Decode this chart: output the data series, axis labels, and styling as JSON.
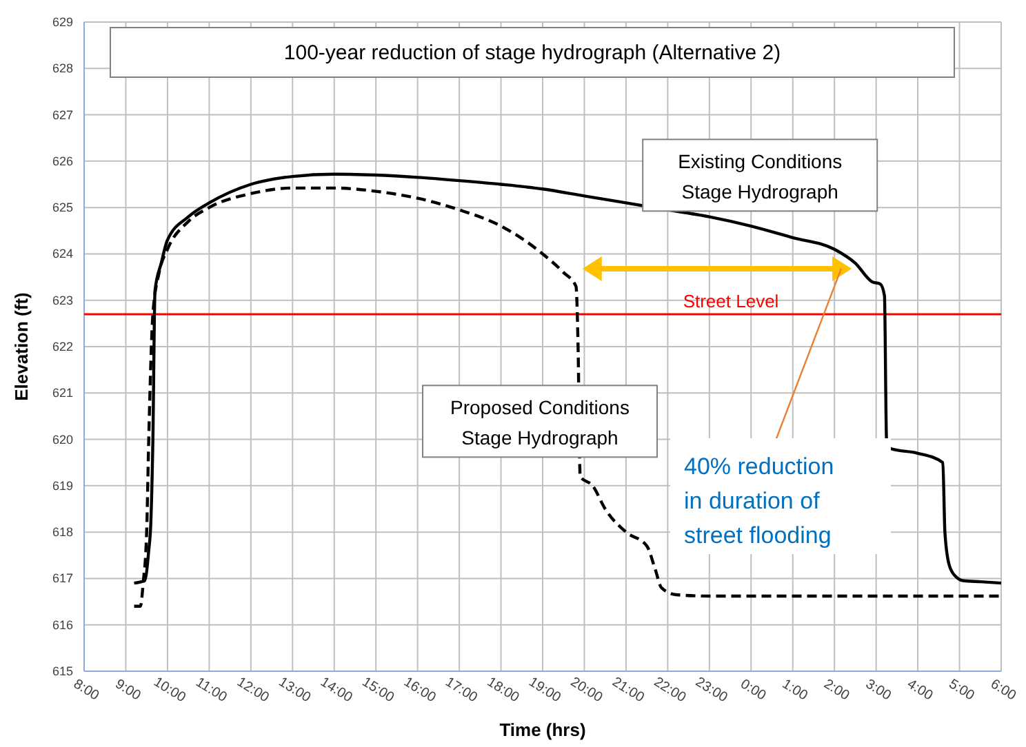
{
  "chart_data": {
    "type": "line",
    "title": "100-year reduction of stage hydrograph (Alternative 2)",
    "xlabel": "Time (hrs)",
    "ylabel": "Elevation (ft)",
    "xlim": [
      "2000-01-01T08:00",
      "2000-01-02T06:00"
    ],
    "xticks": [
      {
        "value": "2000-01-01T08:00",
        "label": "8:00"
      },
      {
        "value": "2000-01-01T09:00",
        "label": "9:00"
      },
      {
        "value": "2000-01-01T10:00",
        "label": "10:00"
      },
      {
        "value": "2000-01-01T11:00",
        "label": "11:00"
      },
      {
        "value": "2000-01-01T12:00",
        "label": "12:00"
      },
      {
        "value": "2000-01-01T13:00",
        "label": "13:00"
      },
      {
        "value": "2000-01-01T14:00",
        "label": "14:00"
      },
      {
        "value": "2000-01-01T15:00",
        "label": "15:00"
      },
      {
        "value": "2000-01-01T16:00",
        "label": "16:00"
      },
      {
        "value": "2000-01-01T17:00",
        "label": "17:00"
      },
      {
        "value": "2000-01-01T18:00",
        "label": "18:00"
      },
      {
        "value": "2000-01-01T19:00",
        "label": "19:00"
      },
      {
        "value": "2000-01-01T20:00",
        "label": "20:00"
      },
      {
        "value": "2000-01-01T21:00",
        "label": "21:00"
      },
      {
        "value": "2000-01-01T22:00",
        "label": "22:00"
      },
      {
        "value": "2000-01-01T23:00",
        "label": "23:00"
      },
      {
        "value": "2000-01-02T00:00",
        "label": "0:00"
      },
      {
        "value": "2000-01-02T01:00",
        "label": "1:00"
      },
      {
        "value": "2000-01-02T02:00",
        "label": "2:00"
      },
      {
        "value": "2000-01-02T03:00",
        "label": "3:00"
      },
      {
        "value": "2000-01-02T04:00",
        "label": "4:00"
      },
      {
        "value": "2000-01-02T05:00",
        "label": "5:00"
      },
      {
        "value": "2000-01-02T06:00",
        "label": "6:00"
      }
    ],
    "ylim": [
      615,
      629
    ],
    "yticks": [
      615,
      616,
      617,
      618,
      619,
      620,
      621,
      622,
      623,
      624,
      625,
      626,
      627,
      628,
      629
    ],
    "grid": true,
    "marker": "none",
    "series": [
      {
        "name": "Existing Conditions Stage Hydrograph",
        "color": "#000000",
        "line_style": "solid",
        "x": [
          "2000-01-01T09:12",
          "2000-01-01T09:27",
          "2000-01-01T09:33",
          "2000-01-01T09:36",
          "2000-01-01T09:39",
          "2000-01-01T09:42",
          "2000-01-01T09:51",
          "2000-01-01T10:00",
          "2000-01-01T10:30",
          "2000-01-01T11:00",
          "2000-01-01T12:00",
          "2000-01-01T13:00",
          "2000-01-01T14:00",
          "2000-01-01T15:00",
          "2000-01-01T16:00",
          "2000-01-01T17:00",
          "2000-01-01T18:00",
          "2000-01-01T19:00",
          "2000-01-01T20:00",
          "2000-01-01T21:00",
          "2000-01-01T22:00",
          "2000-01-01T23:00",
          "2000-01-02T00:00",
          "2000-01-02T01:00",
          "2000-01-02T02:00",
          "2000-01-02T02:30",
          "2000-01-02T02:54",
          "2000-01-02T03:06",
          "2000-01-02T03:12",
          "2000-01-02T03:15",
          "2000-01-02T03:21",
          "2000-01-02T04:00",
          "2000-01-02T04:36",
          "2000-01-02T04:39",
          "2000-01-02T04:45",
          "2000-01-02T04:54",
          "2000-01-02T05:06",
          "2000-01-02T05:30",
          "2000-01-02T06:00"
        ],
        "values": [
          616.9,
          616.95,
          617.6,
          618.2,
          620,
          623.2,
          623.8,
          624.3,
          624.8,
          625.1,
          625.5,
          625.67,
          625.72,
          625.7,
          625.65,
          625.58,
          625.5,
          625.4,
          625.25,
          625.1,
          624.95,
          624.8,
          624.6,
          624.35,
          624.1,
          623.8,
          623.4,
          623.35,
          623.1,
          620,
          619.8,
          619.7,
          619.5,
          618,
          617.3,
          617.05,
          616.95,
          616.93,
          616.9
        ]
      },
      {
        "name": "Proposed Conditions Stage Hydrograph",
        "color": "#000000",
        "line_style": "dashed",
        "x": [
          "2000-01-01T09:12",
          "2000-01-01T09:21",
          "2000-01-01T09:25",
          "2000-01-01T09:30",
          "2000-01-01T09:33",
          "2000-01-01T09:39",
          "2000-01-01T09:48",
          "2000-01-01T10:00",
          "2000-01-01T10:30",
          "2000-01-01T11:00",
          "2000-01-01T12:00",
          "2000-01-01T13:00",
          "2000-01-01T14:00",
          "2000-01-01T15:00",
          "2000-01-01T16:00",
          "2000-01-01T17:00",
          "2000-01-01T18:00",
          "2000-01-01T19:00",
          "2000-01-01T19:30",
          "2000-01-01T19:48",
          "2000-01-01T19:51",
          "2000-01-01T19:54",
          "2000-01-01T20:12",
          "2000-01-01T20:30",
          "2000-01-01T21:00",
          "2000-01-01T21:30",
          "2000-01-01T21:42",
          "2000-01-01T21:51",
          "2000-01-01T22:12",
          "2000-01-01T23:00",
          "2000-01-02T06:00"
        ],
        "values": [
          616.4,
          616.4,
          616.9,
          618,
          620,
          622.7,
          623.6,
          624.1,
          624.7,
          625,
          625.3,
          625.42,
          625.42,
          625.35,
          625.2,
          624.95,
          624.6,
          624,
          623.6,
          623.3,
          622,
          619.2,
          619,
          618.5,
          618,
          617.7,
          617.2,
          616.8,
          616.65,
          616.62,
          616.62
        ]
      }
    ],
    "ref_lines": [
      {
        "axis": "y",
        "value": 622.7,
        "label": "Street Level",
        "color": "#ff0000",
        "line_style": "solid"
      }
    ],
    "annotations": [
      "40% reduction in duration of street flooding"
    ]
  }
}
